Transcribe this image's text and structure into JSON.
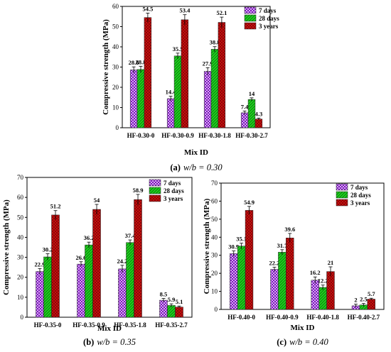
{
  "colors": {
    "7 days": "#7a18b8",
    "28 days": "#1fd61f",
    "3 years": "#cc1111"
  },
  "chart_data": [
    {
      "type": "bar",
      "caption_label": "(a)",
      "caption_text": "w/b = 0.30",
      "categories": [
        "HF-0.30-0",
        "HF-0.30-0.9",
        "HF-0.30-1.8",
        "HF-0.30-2.7"
      ],
      "series": [
        {
          "name": "7 days",
          "values": [
            28.6,
            14.4,
            27.9,
            7.4
          ],
          "labels": [
            "28.6",
            "14.4",
            "27.9",
            "7.4"
          ]
        },
        {
          "name": "28 days",
          "values": [
            28.8,
            35.5,
            38.8,
            14
          ],
          "labels": [
            "28.8",
            "35.5",
            "38.8",
            "14"
          ]
        },
        {
          "name": "3 years",
          "values": [
            54.5,
            53.4,
            52.1,
            4.3
          ],
          "labels": [
            "54.5",
            "53.4",
            "52.1",
            "4.3"
          ]
        }
      ],
      "xlabel": "Mix ID",
      "ylabel": "Compressive strength (MPa)",
      "ylim": [
        0,
        60
      ],
      "yticks": [
        0,
        10,
        20,
        30,
        40,
        50,
        60
      ],
      "legend": "top-right"
    },
    {
      "type": "bar",
      "caption_label": "(b)",
      "caption_text": "w/b = 0.35",
      "categories": [
        "HF-0.35-0",
        "HF-0.35-0.9",
        "HF-0.35-1.8",
        "HF-0.35-2.7"
      ],
      "series": [
        {
          "name": "7 days",
          "values": [
            22.9,
            26.6,
            24.2,
            8.5
          ],
          "labels": [
            "22.9",
            "26.6",
            "24.2",
            "8.5"
          ]
        },
        {
          "name": "28 days",
          "values": [
            30.2,
            36.2,
            37.4,
            5.9
          ],
          "labels": [
            "30.2",
            "36.2",
            "37.4",
            "5.9"
          ]
        },
        {
          "name": "3 years",
          "values": [
            51.2,
            54,
            58.9,
            5.1
          ],
          "labels": [
            "51.2",
            "54",
            "58.9",
            "5.1"
          ]
        }
      ],
      "xlabel": "Mix ID",
      "ylabel": "Compressive strength (MPa)",
      "ylim": [
        0,
        70
      ],
      "yticks": [
        0,
        10,
        20,
        30,
        40,
        50,
        60,
        70
      ],
      "legend": "top-right"
    },
    {
      "type": "bar",
      "caption_label": "(c)",
      "caption_text": "w/b = 0.40",
      "categories": [
        "HF-0.40-0",
        "HF-0.40-0.9",
        "HF-0.40-1.8",
        "HF-0.40-2.7"
      ],
      "series": [
        {
          "name": "7 days",
          "values": [
            30.9,
            22.2,
            16.2,
            2
          ],
          "labels": [
            "30.9",
            "22.2",
            "16.2",
            "2"
          ]
        },
        {
          "name": "28 days",
          "values": [
            35.1,
            31.7,
            12.2,
            2.5
          ],
          "labels": [
            "35.1",
            "31.7",
            "12.2",
            "2.5"
          ]
        },
        {
          "name": "3 years",
          "values": [
            54.9,
            39.6,
            21,
            5.7
          ],
          "labels": [
            "54.9",
            "39.6",
            "21",
            "5.7"
          ]
        }
      ],
      "xlabel": "Mix ID",
      "ylabel": "Compressive strength (MPa)",
      "ylim": [
        0,
        70
      ],
      "yticks": [
        0,
        10,
        20,
        30,
        40,
        50,
        60,
        70
      ],
      "legend": "top-right"
    }
  ]
}
